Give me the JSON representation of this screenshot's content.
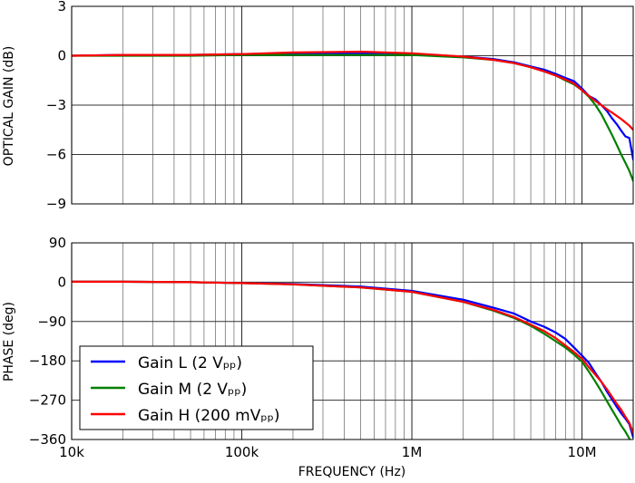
{
  "chart_data": [
    {
      "type": "line",
      "ylabel": "OPTICAL GAIN (dB)",
      "ylim": [
        -9,
        3
      ],
      "yticks": [
        3,
        0,
        -3,
        -6,
        -9
      ],
      "ytick_labels": [
        "3",
        "0",
        "−3",
        "−6",
        "−9"
      ],
      "xscale": "log",
      "xlim": [
        10000,
        20000000
      ],
      "grid": true,
      "series": [
        {
          "name": "Gain L (2 Vₚₚ)",
          "color": "#0000ff",
          "x": [
            10000,
            20000,
            50000,
            100000,
            200000,
            500000,
            1000000,
            2000000,
            3000000,
            4000000,
            5000000,
            6000000,
            7000000,
            8000000,
            9000000,
            10000000,
            11000000,
            12000000,
            13000000,
            14000000,
            15000000,
            16000000,
            17000000,
            18000000,
            19000000,
            20000000
          ],
          "values": [
            0.0,
            0.05,
            0.05,
            0.1,
            0.15,
            0.15,
            0.1,
            -0.05,
            -0.2,
            -0.4,
            -0.65,
            -0.85,
            -1.1,
            -1.35,
            -1.55,
            -2.0,
            -2.45,
            -2.65,
            -3.0,
            -3.35,
            -3.8,
            -4.15,
            -4.55,
            -4.9,
            -5.0,
            -6.3
          ]
        },
        {
          "name": "Gain M (2 Vₚₚ)",
          "color": "#008000",
          "x": [
            10000,
            20000,
            50000,
            100000,
            200000,
            500000,
            1000000,
            2000000,
            3000000,
            4000000,
            5000000,
            6000000,
            7000000,
            8000000,
            9000000,
            10000000,
            11000000,
            12000000,
            13000000,
            14000000,
            15000000,
            16000000,
            17000000,
            18000000,
            19000000,
            20000000
          ],
          "values": [
            0.0,
            0.0,
            0.0,
            0.05,
            0.05,
            0.05,
            0.05,
            -0.1,
            -0.25,
            -0.45,
            -0.7,
            -0.95,
            -1.2,
            -1.5,
            -1.75,
            -2.1,
            -2.5,
            -3.0,
            -3.55,
            -4.2,
            -4.8,
            -5.4,
            -6.0,
            -6.5,
            -7.0,
            -7.6
          ]
        },
        {
          "name": "Gain H (200 mVₚₚ)",
          "color": "#ff0000",
          "x": [
            10000,
            20000,
            50000,
            100000,
            200000,
            500000,
            1000000,
            2000000,
            3000000,
            4000000,
            5000000,
            6000000,
            7000000,
            8000000,
            9000000,
            10000000,
            11000000,
            12000000,
            13000000,
            14000000,
            15000000,
            16000000,
            17000000,
            18000000,
            19000000,
            20000000
          ],
          "values": [
            0.0,
            0.05,
            0.05,
            0.1,
            0.2,
            0.25,
            0.15,
            -0.05,
            -0.25,
            -0.45,
            -0.7,
            -0.95,
            -1.2,
            -1.45,
            -1.7,
            -2.1,
            -2.45,
            -2.75,
            -3.0,
            -3.25,
            -3.45,
            -3.65,
            -3.85,
            -4.05,
            -4.25,
            -4.5
          ]
        }
      ]
    },
    {
      "type": "line",
      "ylabel": "PHASE (deg)",
      "xlabel": "FREQUENCY (Hz)",
      "ylim": [
        -360,
        90
      ],
      "yticks": [
        90,
        0,
        -90,
        -180,
        -270,
        -360
      ],
      "ytick_labels": [
        "90",
        "0",
        "−90",
        "−180",
        "−270",
        "−360"
      ],
      "xscale": "log",
      "xlim": [
        10000,
        20000000
      ],
      "xticks": [
        10000,
        100000,
        1000000,
        10000000
      ],
      "xtick_labels": [
        "10k",
        "100k",
        "1M",
        "10M"
      ],
      "grid": true,
      "legend_position": "lower-left",
      "series": [
        {
          "name": "Gain L (2 Vₚₚ)",
          "color": "#0000ff",
          "x": [
            10000,
            20000,
            50000,
            100000,
            200000,
            500000,
            1000000,
            2000000,
            3000000,
            4000000,
            5000000,
            6000000,
            7000000,
            8000000,
            9000000,
            10000000,
            11000000,
            12000000,
            13000000,
            14000000,
            15000000,
            16000000,
            17000000,
            18000000,
            19000000,
            20000000
          ],
          "values": [
            1,
            1,
            0,
            -2,
            -4,
            -10,
            -20,
            -40,
            -58,
            -72,
            -90,
            -102,
            -115,
            -130,
            -150,
            -168,
            -185,
            -208,
            -228,
            -250,
            -268,
            -285,
            -300,
            -312,
            -325,
            -355
          ]
        },
        {
          "name": "Gain M (2 Vₚₚ)",
          "color": "#008000",
          "x": [
            10000,
            20000,
            50000,
            100000,
            200000,
            500000,
            1000000,
            2000000,
            3000000,
            4000000,
            5000000,
            6000000,
            7000000,
            8000000,
            9000000,
            10000000,
            11000000,
            12000000,
            13000000,
            14000000,
            15000000,
            16000000,
            17000000,
            18000000,
            19000000,
            20000000
          ],
          "values": [
            1,
            1,
            0,
            -2,
            -5,
            -12,
            -22,
            -45,
            -65,
            -82,
            -100,
            -118,
            -135,
            -150,
            -166,
            -182,
            -205,
            -228,
            -250,
            -272,
            -292,
            -310,
            -328,
            -342,
            -358,
            -375
          ]
        },
        {
          "name": "Gain H (200 mVₚₚ)",
          "color": "#ff0000",
          "x": [
            10000,
            20000,
            50000,
            100000,
            200000,
            500000,
            1000000,
            2000000,
            3000000,
            4000000,
            5000000,
            6000000,
            7000000,
            8000000,
            9000000,
            10000000,
            11000000,
            12000000,
            13000000,
            14000000,
            15000000,
            16000000,
            17000000,
            18000000,
            19000000,
            20000000
          ],
          "values": [
            1,
            1,
            0,
            -2,
            -5,
            -12,
            -22,
            -45,
            -63,
            -80,
            -97,
            -112,
            -128,
            -145,
            -160,
            -175,
            -195,
            -212,
            -228,
            -245,
            -262,
            -278,
            -292,
            -308,
            -322,
            -345
          ]
        }
      ]
    }
  ]
}
